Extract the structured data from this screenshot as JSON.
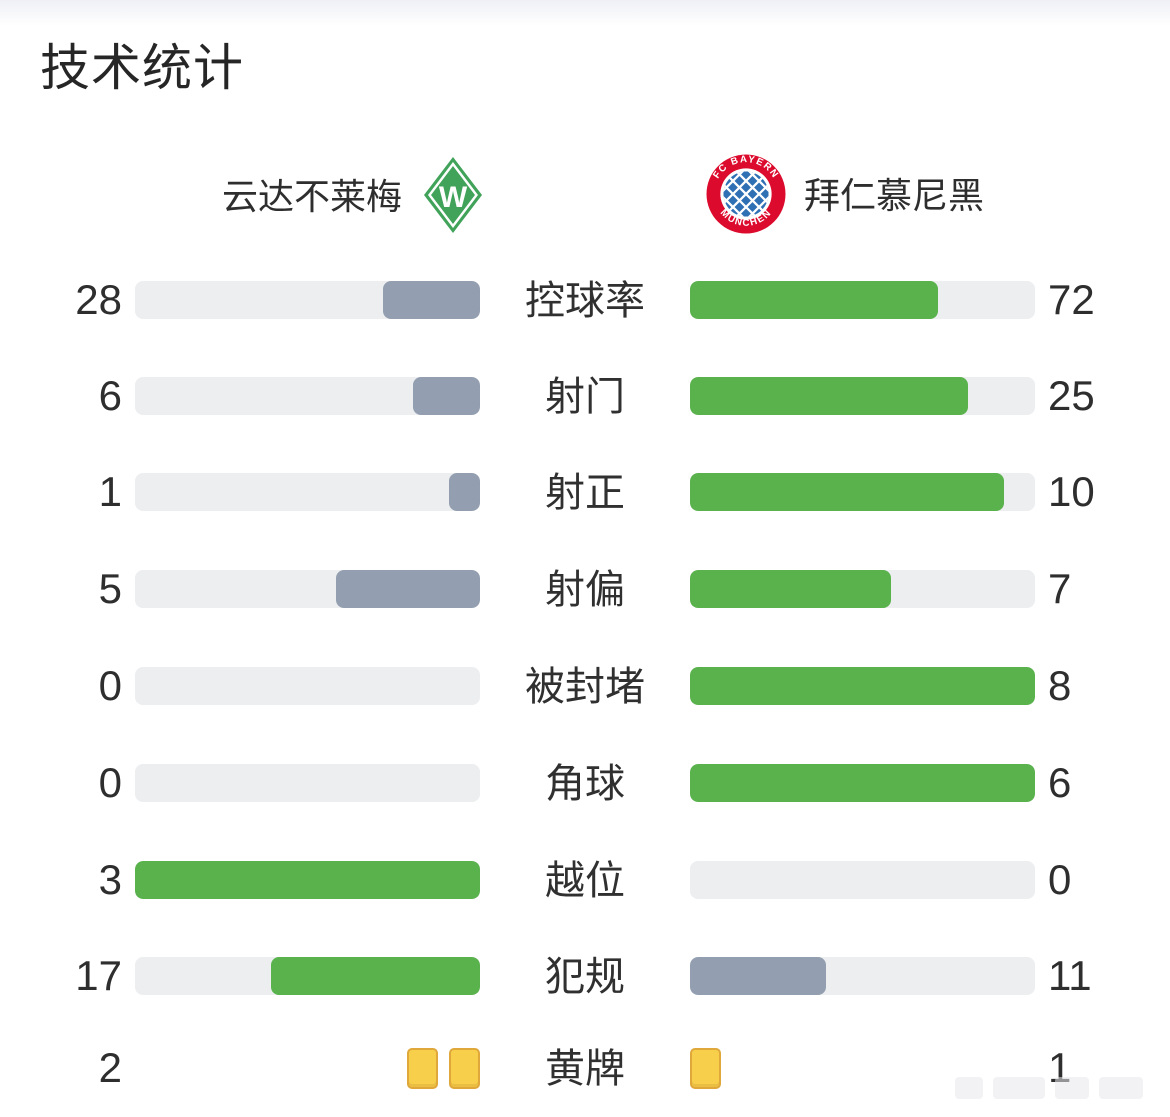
{
  "title": "技术统计",
  "teams": {
    "home": {
      "name": "云达不莱梅",
      "badge_letter": "W"
    },
    "away": {
      "name": "拜仁慕尼黑",
      "badge_top": "FC BAYERN",
      "badge_bottom": "MÜNCHEN"
    }
  },
  "colors": {
    "green": "#5ab24d",
    "gray": "#939fb0",
    "track": "#eceef0",
    "yellow": "#f7cf4b",
    "yellow_border": "#e0a83b",
    "werder_green": "#41a35a",
    "bayern_red": "#dc0a2d",
    "bayern_blue": "#2f6fb4"
  },
  "rows": [
    {
      "label": "控球率",
      "home": {
        "value": "28",
        "pct": 28,
        "color": "gray"
      },
      "away": {
        "value": "72",
        "pct": 72,
        "color": "green"
      }
    },
    {
      "label": "射门",
      "home": {
        "value": "6",
        "pct": 19.4,
        "color": "gray"
      },
      "away": {
        "value": "25",
        "pct": 80.6,
        "color": "green"
      }
    },
    {
      "label": "射正",
      "home": {
        "value": "1",
        "pct": 9.1,
        "color": "gray"
      },
      "away": {
        "value": "10",
        "pct": 90.9,
        "color": "green"
      }
    },
    {
      "label": "射偏",
      "home": {
        "value": "5",
        "pct": 41.7,
        "color": "gray"
      },
      "away": {
        "value": "7",
        "pct": 58.3,
        "color": "green"
      }
    },
    {
      "label": "被封堵",
      "home": {
        "value": "0",
        "pct": 0,
        "color": "none"
      },
      "away": {
        "value": "8",
        "pct": 100,
        "color": "green"
      }
    },
    {
      "label": "角球",
      "home": {
        "value": "0",
        "pct": 0,
        "color": "none"
      },
      "away": {
        "value": "6",
        "pct": 100,
        "color": "green"
      }
    },
    {
      "label": "越位",
      "home": {
        "value": "3",
        "pct": 100,
        "color": "green"
      },
      "away": {
        "value": "0",
        "pct": 0,
        "color": "none"
      }
    },
    {
      "label": "犯规",
      "home": {
        "value": "17",
        "pct": 60.7,
        "color": "green"
      },
      "away": {
        "value": "11",
        "pct": 39.3,
        "color": "gray"
      }
    }
  ],
  "cards_row": {
    "label": "黄牌",
    "home": {
      "value": "2",
      "cards": 2
    },
    "away": {
      "value": "1",
      "cards": 1
    }
  },
  "chart_data": {
    "type": "bar",
    "title": "技术统计",
    "orientation": "horizontal-mirrored",
    "categories": [
      "控球率",
      "射门",
      "射正",
      "射偏",
      "被封堵",
      "角球",
      "越位",
      "犯规",
      "黄牌"
    ],
    "series": [
      {
        "name": "云达不莱梅",
        "values": [
          28,
          6,
          1,
          5,
          0,
          0,
          3,
          17,
          2
        ]
      },
      {
        "name": "拜仁慕尼黑",
        "values": [
          72,
          25,
          10,
          7,
          8,
          6,
          0,
          11,
          1
        ]
      }
    ],
    "value_labels": "outer edges, home left / away right",
    "bar_scale": "fill length = value / (home + away)",
    "color_rule": "larger value green #5ab24d, smaller gray #939fb0, empty track #eceef0",
    "last_category_rendered_as": "yellow-card icons instead of bars"
  }
}
